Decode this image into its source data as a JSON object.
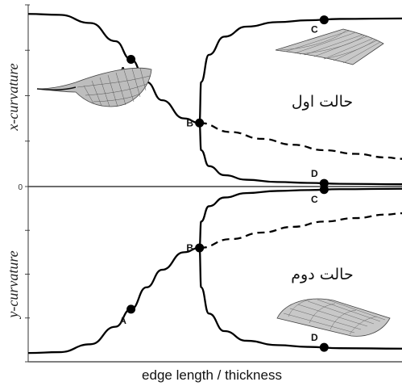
{
  "chart_data": [
    {
      "type": "line",
      "panel": "top",
      "ylabel": "x-curvature",
      "xlabel": "",
      "annotation": "حالت اول",
      "grid": false,
      "series": [
        {
          "style": "solid",
          "points": [
            [
              0,
              3.8
            ],
            [
              1.0,
              3.78
            ],
            [
              2.0,
              3.6
            ],
            [
              2.8,
              3.2
            ],
            [
              3.3,
              2.8
            ],
            [
              3.8,
              2.3
            ],
            [
              4.3,
              1.9
            ],
            [
              5.0,
              1.5
            ],
            [
              5.5,
              1.4
            ]
          ]
        },
        {
          "style": "dashed",
          "points": [
            [
              5.5,
              1.4
            ],
            [
              6.5,
              1.2
            ],
            [
              7.5,
              1.05
            ],
            [
              8.5,
              0.92
            ],
            [
              9.5,
              0.8
            ],
            [
              10.5,
              0.72
            ],
            [
              11.5,
              0.64
            ],
            [
              12.0,
              0.61
            ]
          ]
        },
        {
          "style": "solid",
          "points": [
            [
              5.5,
              1.4
            ],
            [
              5.55,
              2.3
            ],
            [
              5.8,
              2.9
            ],
            [
              6.3,
              3.3
            ],
            [
              7.0,
              3.52
            ],
            [
              8.0,
              3.62
            ],
            [
              9.0,
              3.66
            ],
            [
              10.0,
              3.69
            ],
            [
              12.0,
              3.7
            ]
          ]
        },
        {
          "style": "solid",
          "points": [
            [
              5.5,
              1.4
            ],
            [
              5.55,
              0.8
            ],
            [
              5.8,
              0.45
            ],
            [
              6.3,
              0.25
            ],
            [
              7.0,
              0.15
            ],
            [
              8.0,
              0.1
            ],
            [
              9.0,
              0.08
            ],
            [
              10.0,
              0.06
            ],
            [
              12.0,
              0.05
            ]
          ]
        }
      ],
      "points": [
        {
          "label": "A",
          "x": 3.3,
          "y": 2.8
        },
        {
          "label": "B",
          "x": 5.5,
          "y": 1.4
        },
        {
          "label": "C",
          "x": 9.5,
          "y": 3.67
        },
        {
          "label": "D",
          "x": 9.5,
          "y": 0.07
        }
      ],
      "yticks": [
        0,
        1,
        2,
        3,
        4
      ],
      "ytick_labels": [
        "0",
        "",
        "",
        "",
        ""
      ],
      "ylim": [
        0,
        4
      ]
    },
    {
      "type": "line",
      "panel": "bottom",
      "ylabel": "y-curvature",
      "xlabel": "edge length / thickness",
      "annotation": "حالت دوم",
      "grid": false,
      "series": [
        {
          "style": "solid",
          "points": [
            [
              0,
              -3.8
            ],
            [
              1.0,
              -3.78
            ],
            [
              2.0,
              -3.6
            ],
            [
              2.8,
              -3.2
            ],
            [
              3.3,
              -2.8
            ],
            [
              3.8,
              -2.3
            ],
            [
              4.3,
              -1.9
            ],
            [
              5.0,
              -1.5
            ],
            [
              5.5,
              -1.4
            ]
          ]
        },
        {
          "style": "dashed",
          "points": [
            [
              5.5,
              -1.4
            ],
            [
              6.5,
              -1.2
            ],
            [
              7.5,
              -1.05
            ],
            [
              8.5,
              -0.92
            ],
            [
              9.5,
              -0.8
            ],
            [
              10.5,
              -0.72
            ],
            [
              11.5,
              -0.64
            ],
            [
              12.0,
              -0.61
            ]
          ]
        },
        {
          "style": "solid",
          "points": [
            [
              5.5,
              -1.4
            ],
            [
              5.55,
              -0.8
            ],
            [
              5.8,
              -0.45
            ],
            [
              6.3,
              -0.25
            ],
            [
              7.0,
              -0.15
            ],
            [
              8.0,
              -0.1
            ],
            [
              9.0,
              -0.08
            ],
            [
              10.0,
              -0.06
            ],
            [
              12.0,
              -0.05
            ]
          ]
        },
        {
          "style": "solid",
          "points": [
            [
              5.5,
              -1.4
            ],
            [
              5.55,
              -2.3
            ],
            [
              5.8,
              -2.9
            ],
            [
              6.3,
              -3.3
            ],
            [
              7.0,
              -3.52
            ],
            [
              8.0,
              -3.62
            ],
            [
              9.0,
              -3.66
            ],
            [
              10.0,
              -3.69
            ],
            [
              12.0,
              -3.7
            ]
          ]
        }
      ],
      "points": [
        {
          "label": "A",
          "x": 3.3,
          "y": -2.8
        },
        {
          "label": "B",
          "x": 5.5,
          "y": -1.4
        },
        {
          "label": "C",
          "x": 9.5,
          "y": -0.07
        },
        {
          "label": "D",
          "x": 9.5,
          "y": -3.67
        }
      ],
      "yticks": [
        0,
        -1,
        -2,
        -3,
        -4
      ],
      "ytick_labels": [
        "",
        "",
        "",
        "",
        ""
      ],
      "ylim": [
        -4,
        0
      ]
    }
  ],
  "shapes": {
    "top": [
      "leaf-shape-icon",
      "saddle-shape-icon"
    ],
    "bottom": [
      "cylinder-shape-icon"
    ]
  },
  "colors": {
    "line": "#000000",
    "mesh": "#555555",
    "axis": "#555555"
  }
}
